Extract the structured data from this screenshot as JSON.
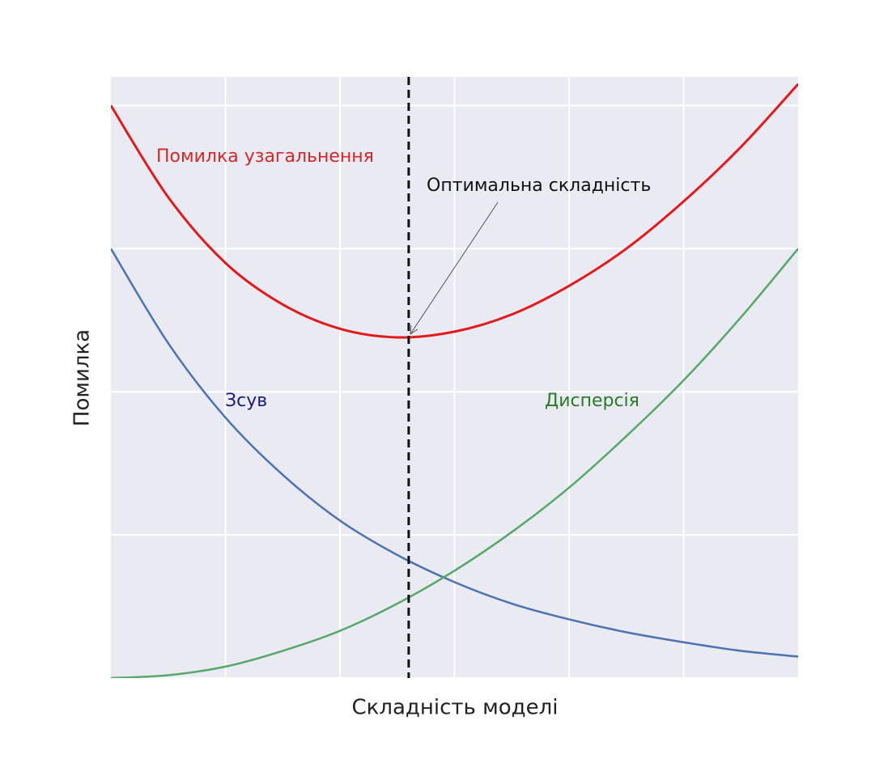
{
  "chart_data": {
    "type": "line",
    "xlabel": "Складність моделі",
    "ylabel": "Помилка",
    "x": [
      0,
      0.5,
      1,
      1.5,
      2,
      2.5,
      3,
      3.5,
      4,
      4.5,
      5,
      5.5,
      6
    ],
    "series": [
      {
        "name": "Помилка узагальнення",
        "color": "#e3191c",
        "label_color": "#d62728",
        "values": [
          4.0,
          3.36,
          2.9,
          2.61,
          2.44,
          2.38,
          2.42,
          2.54,
          2.74,
          3.0,
          3.33,
          3.71,
          4.15
        ]
      },
      {
        "name": "Зсув",
        "color": "#4c72b0",
        "label_color": "#1c1c7a",
        "values": [
          3.0,
          2.34,
          1.82,
          1.42,
          1.1,
          0.86,
          0.67,
          0.52,
          0.41,
          0.32,
          0.25,
          0.19,
          0.15
        ]
      },
      {
        "name": "Дисперсія",
        "color": "#55a868",
        "label_color": "#2a7a2a",
        "values": [
          0,
          0.02,
          0.08,
          0.19,
          0.33,
          0.52,
          0.75,
          1.02,
          1.33,
          1.69,
          2.08,
          2.52,
          3.0
        ]
      }
    ],
    "vline": {
      "x": 2.6,
      "color": "#111111"
    },
    "annotation": {
      "text": "Оптимальна складність",
      "xy": [
        2.6,
        2.38
      ]
    },
    "xlim": [
      0,
      6
    ],
    "ylim": [
      0,
      4.2
    ],
    "xticks": [
      1,
      2,
      3,
      4,
      5
    ],
    "yticks": [
      0,
      1,
      2,
      3,
      4
    ],
    "show_tick_labels": false,
    "grid": true,
    "background": "#eaeaf2"
  }
}
